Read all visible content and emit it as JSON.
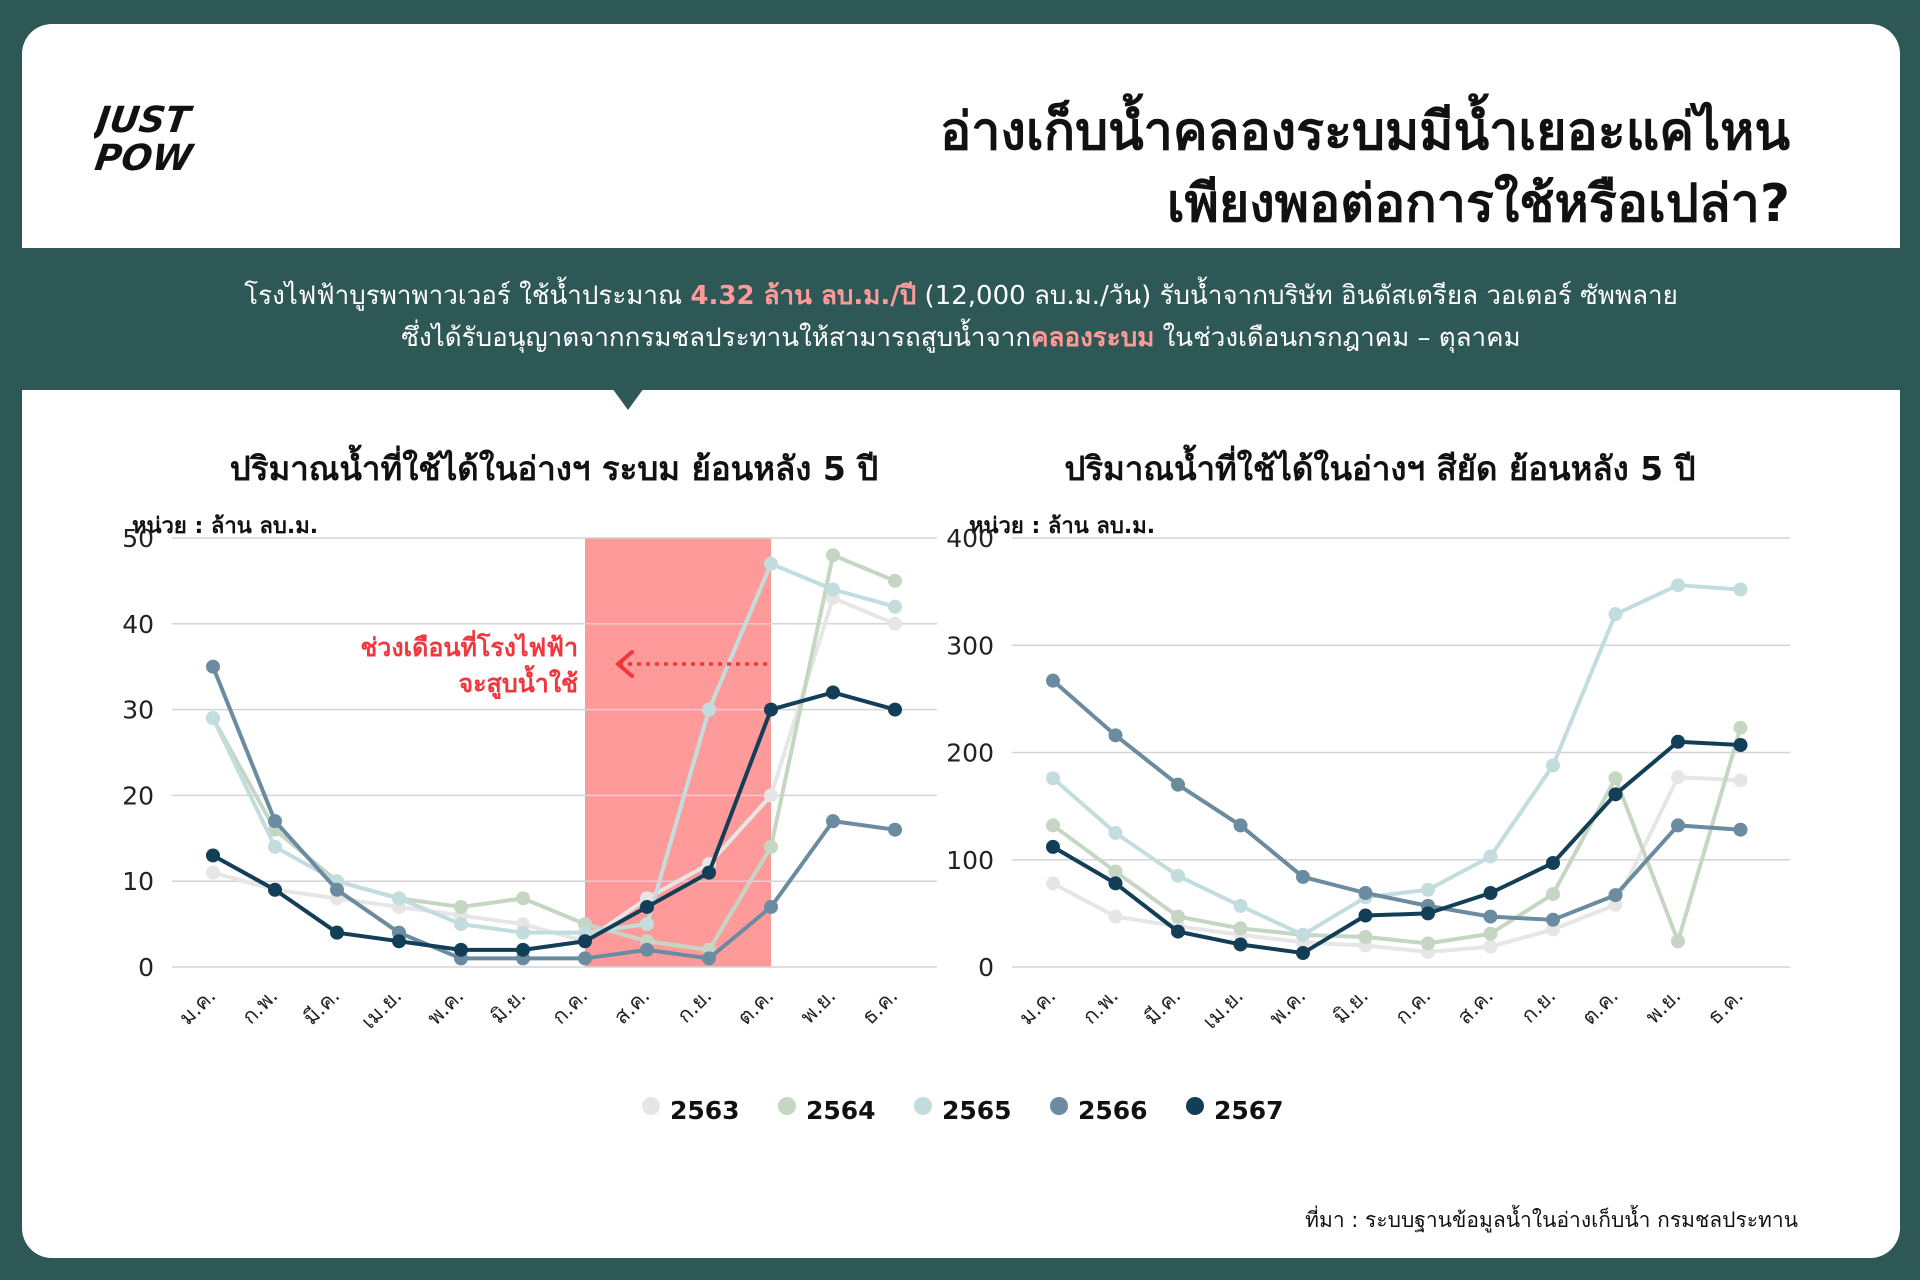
{
  "logo": {
    "line1": "JUST",
    "line2": "POW"
  },
  "header": {
    "title_line1": "อ่างเก็บน้ำคลองระบมมีน้ำเยอะแค่ไหน",
    "title_line2": "เพียงพอต่อการใช้หรือเปล่า?"
  },
  "intro": {
    "l1_a": "โรงไฟฟ้าบูรพาพาวเวอร์ ใช้น้ำประมาณ ",
    "l1_hl": "4.32 ล้าน ลบ.ม./ปี",
    "l1_b": " (12,000 ลบ.ม./วัน) รับน้ำจากบริษัท อินดัสเตรียล วอเตอร์ ซัพพลาย",
    "l2_a": "ซึ่งได้รับอนุญาตจากกรมชลประทานให้สามารถสูบน้ำจาก",
    "l2_hl": "คลองระบม",
    "l2_b": " ในช่วงเดือนกรกฎาคม – ตุลาคม"
  },
  "colors": {
    "bg": "#2e5856",
    "highlight_band": "#ff9a9a",
    "annotation": "#f0373d",
    "2563": "#e6e6e6",
    "2564": "#c5d6c3",
    "2565": "#c3dcde",
    "2566": "#6b8ba0",
    "2567": "#133e57"
  },
  "legend": [
    "2563",
    "2564",
    "2565",
    "2566",
    "2567"
  ],
  "source": "ที่มา : ระบบฐานข้อมูลน้ำในอ่างเก็บน้ำ กรมชลประทาน",
  "chart_data": [
    {
      "type": "line",
      "title": "ปริมาณน้ำที่ใช้ได้ในอ่างฯ ระบม ย้อนหลัง 5 ปี",
      "unit": "หน่วย : ล้าน ลบ.ม.",
      "categories": [
        "ม.ค.",
        "ก.พ.",
        "มี.ค.",
        "เม.ย.",
        "พ.ค.",
        "มิ.ย.",
        "ก.ค.",
        "ส.ค.",
        "ก.ย.",
        "ต.ค.",
        "พ.ย.",
        "ธ.ค."
      ],
      "ylim": [
        0,
        50
      ],
      "yticks": [
        0,
        10,
        20,
        30,
        40,
        50
      ],
      "grid": true,
      "highlight": {
        "from": "ก.ค.",
        "to": "ต.ค.",
        "label_line1": "ช่วงเดือนที่โรงไฟฟ้า",
        "label_line2": "จะสูบน้ำใช้"
      },
      "series": [
        {
          "name": "2563",
          "values": [
            11,
            9,
            8,
            7,
            6,
            5,
            3,
            8,
            12,
            20,
            43,
            40
          ]
        },
        {
          "name": "2564",
          "values": [
            29,
            16,
            10,
            8,
            7,
            8,
            5,
            3,
            2,
            14,
            48,
            45
          ]
        },
        {
          "name": "2565",
          "values": [
            29,
            14,
            10,
            8,
            5,
            4,
            4,
            5,
            30,
            47,
            44,
            42
          ]
        },
        {
          "name": "2566",
          "values": [
            35,
            17,
            9,
            4,
            1,
            1,
            1,
            2,
            1,
            7,
            17,
            16
          ]
        },
        {
          "name": "2567",
          "values": [
            13,
            9,
            4,
            3,
            2,
            2,
            3,
            7,
            11,
            30,
            32,
            30
          ]
        }
      ]
    },
    {
      "type": "line",
      "title": "ปริมาณน้ำที่ใช้ได้ในอ่างฯ สียัด ย้อนหลัง 5 ปี",
      "unit": "หน่วย : ล้าน ลบ.ม.",
      "categories": [
        "ม.ค.",
        "ก.พ.",
        "มี.ค.",
        "เม.ย.",
        "พ.ค.",
        "มิ.ย.",
        "ก.ค.",
        "ส.ค.",
        "ก.ย.",
        "ต.ค.",
        "พ.ย.",
        "ธ.ค."
      ],
      "ylim": [
        0,
        400
      ],
      "yticks": [
        0,
        100,
        200,
        300,
        400
      ],
      "grid": true,
      "series": [
        {
          "name": "2563",
          "values": [
            78,
            47,
            38,
            30,
            23,
            20,
            14,
            19,
            35,
            58,
            177,
            174
          ]
        },
        {
          "name": "2564",
          "values": [
            132,
            89,
            47,
            36,
            30,
            28,
            22,
            31,
            68,
            176,
            24,
            223
          ]
        },
        {
          "name": "2565",
          "values": [
            176,
            125,
            85,
            57,
            30,
            65,
            72,
            103,
            188,
            329,
            356,
            352
          ]
        },
        {
          "name": "2566",
          "values": [
            267,
            216,
            170,
            132,
            84,
            69,
            57,
            47,
            44,
            67,
            132,
            128
          ]
        },
        {
          "name": "2567",
          "values": [
            112,
            78,
            33,
            21,
            13,
            48,
            50,
            69,
            97,
            161,
            210,
            207
          ]
        }
      ]
    }
  ]
}
